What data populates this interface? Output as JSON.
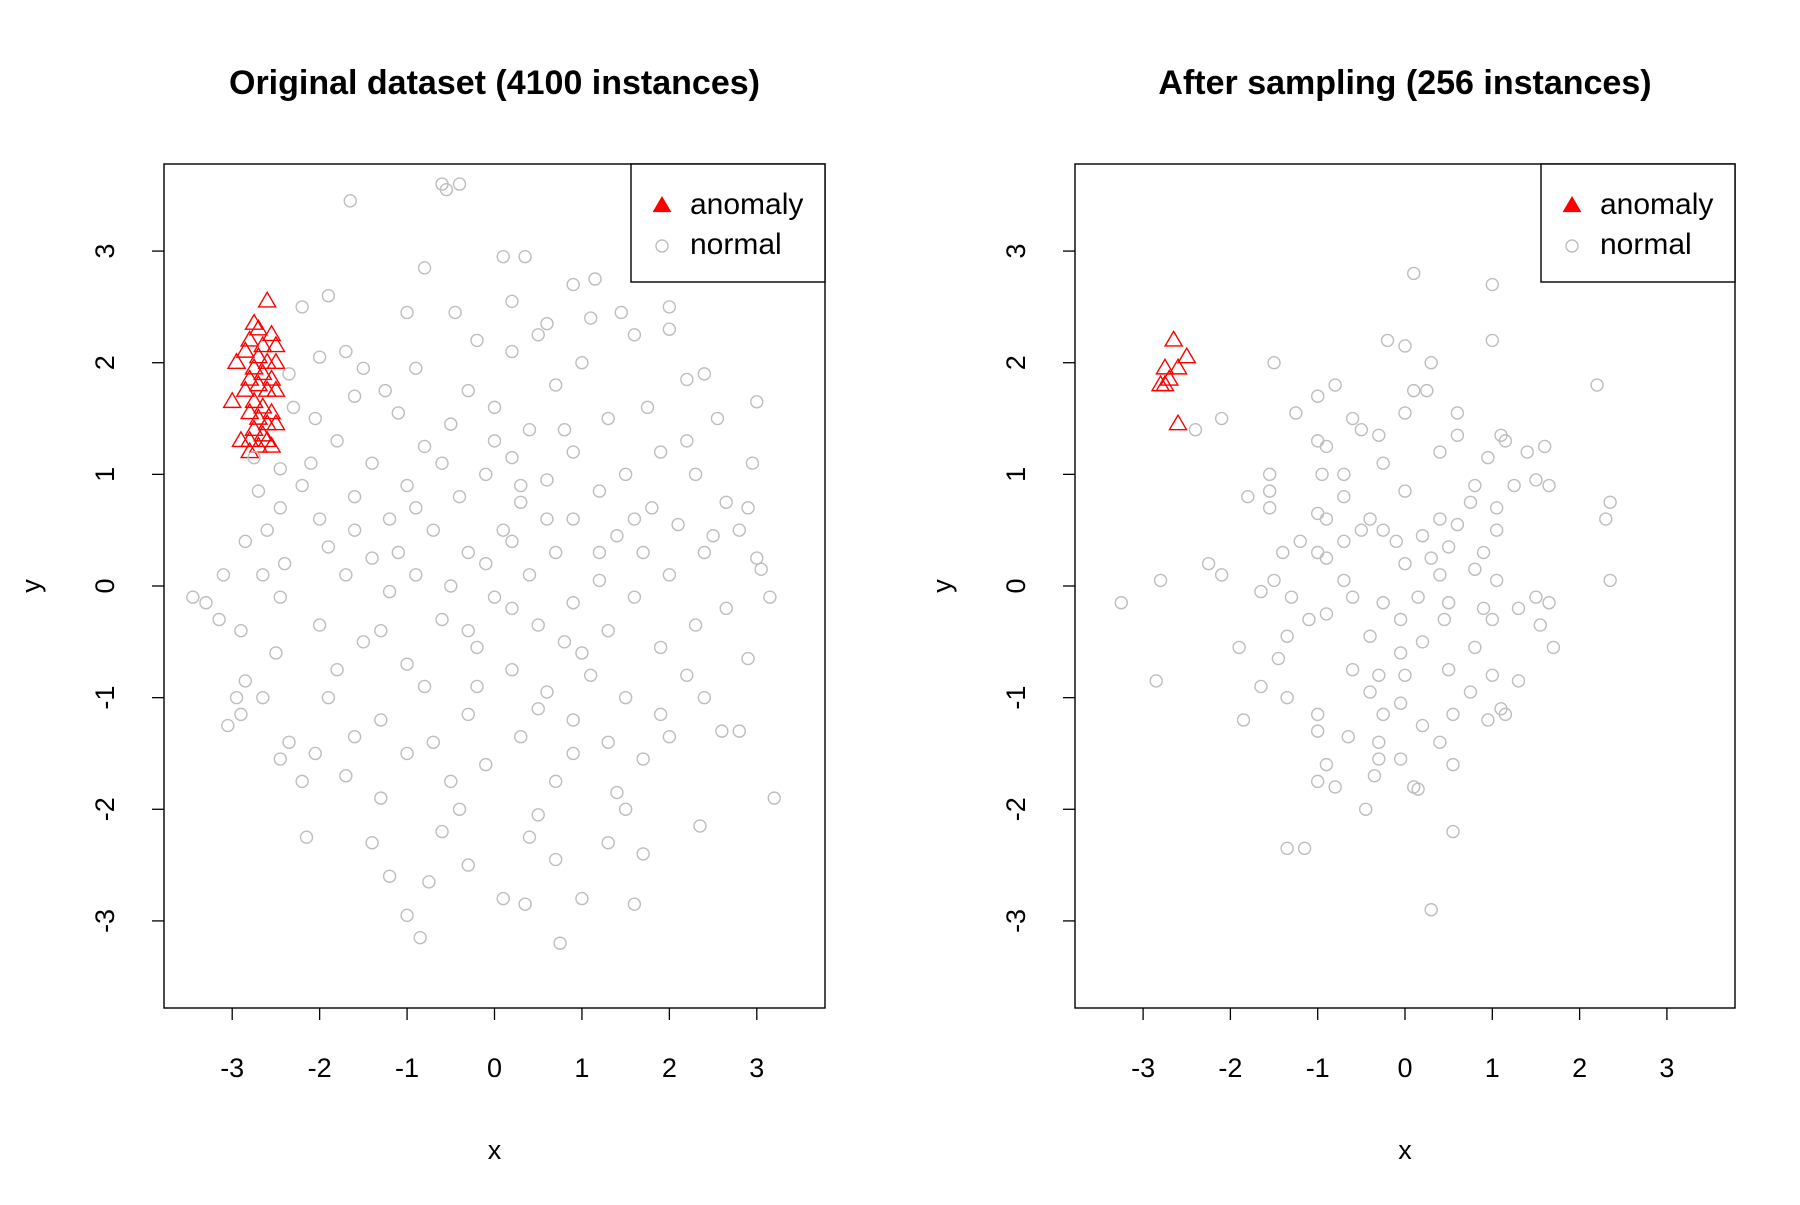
{
  "chart_data": [
    {
      "type": "scatter",
      "title": "Original dataset (4100 instances)",
      "xlabel": "x",
      "ylabel": "y",
      "xlim": [
        -3.78,
        3.78
      ],
      "ylim": [
        -3.78,
        3.78
      ],
      "xticks": [
        -3,
        -2,
        -1,
        0,
        1,
        2,
        3
      ],
      "yticks": [
        -3,
        -2,
        -1,
        0,
        1,
        2,
        3
      ],
      "legend": "topright",
      "series": [
        {
          "name": "anomaly",
          "color": "#ff0000",
          "marker": "triangle",
          "x": [
            -2.6,
            -2.75,
            -2.7,
            -2.55,
            -2.8,
            -2.65,
            -2.5,
            -2.85,
            -2.7,
            -2.6,
            -2.5,
            -2.95,
            -2.75,
            -2.65,
            -2.55,
            -2.8,
            -2.7,
            -2.6,
            -2.5,
            -2.85,
            -3.0,
            -2.75,
            -2.65,
            -2.55,
            -2.8,
            -2.7,
            -2.6,
            -2.5,
            -2.75,
            -2.65,
            -2.9,
            -2.8,
            -2.7,
            -2.6,
            -2.8,
            -2.55
          ],
          "y": [
            2.55,
            2.35,
            2.3,
            2.25,
            2.2,
            2.15,
            2.15,
            2.1,
            2.05,
            2.0,
            2.0,
            2.0,
            1.95,
            1.9,
            1.85,
            1.85,
            1.8,
            1.75,
            1.75,
            1.75,
            1.65,
            1.65,
            1.6,
            1.55,
            1.55,
            1.5,
            1.45,
            1.45,
            1.4,
            1.35,
            1.3,
            1.3,
            1.25,
            1.3,
            1.2,
            1.25
          ]
        },
        {
          "name": "normal",
          "color": "#bebebe",
          "marker": "circle",
          "x": [
            -0.4,
            -0.6,
            -0.55,
            -1.65,
            0.1,
            0.35,
            -0.8,
            1.15,
            0.9,
            0.2,
            -1.9,
            -2.2,
            -0.45,
            1.1,
            1.45,
            2.0,
            -1.0,
            0.6,
            1.6,
            2.0,
            -1.7,
            -2.0,
            -0.2,
            0.5,
            -1.5,
            2.4,
            2.2,
            1.0,
            -0.9,
            0.2,
            -2.35,
            -1.6,
            -1.25,
            2.55,
            3.0,
            1.75,
            -0.3,
            0.7,
            -2.05,
            -2.3,
            -1.1,
            0.0,
            1.3,
            -0.5,
            0.4,
            2.2,
            -1.8,
            -2.75,
            -2.45,
            2.95,
            1.9,
            -0.8,
            0.9,
            -2.1,
            -1.4,
            0.2,
            1.5,
            2.3,
            -0.1,
            -2.7,
            -2.2,
            -1.0,
            0.6,
            1.2,
            2.65,
            2.9,
            -2.45,
            -1.6,
            -0.4,
            0.3,
            1.8,
            -2.0,
            -1.2,
            0.9,
            2.1,
            -2.6,
            -0.7,
            0.1,
            1.4,
            2.5,
            2.8,
            -2.85,
            -1.9,
            -0.3,
            0.7,
            1.7,
            2.4,
            -1.4,
            -2.4,
            3.0,
            -3.1,
            -2.65,
            -1.7,
            -0.9,
            0.4,
            1.2,
            2.0,
            3.05,
            -3.45,
            -3.3,
            -2.45,
            -1.2,
            0.0,
            0.9,
            1.6,
            2.65,
            3.15,
            -3.15,
            -2.9,
            -2.0,
            -0.6,
            0.5,
            1.3,
            2.3,
            -1.5,
            -0.2,
            0.8,
            1.9,
            -2.5,
            2.9,
            -2.85,
            -1.8,
            -1.0,
            0.2,
            1.1,
            2.2,
            -2.65,
            -2.95,
            -1.9,
            0.6,
            1.5,
            2.4,
            -3.05,
            -2.9,
            -1.3,
            -0.3,
            0.9,
            1.9,
            2.6,
            2.8,
            -2.35,
            -1.6,
            -0.7,
            0.3,
            1.3,
            2.0,
            -2.45,
            -2.05,
            -0.1,
            1.7,
            -2.2,
            -1.7,
            -0.5,
            0.7,
            1.4,
            3.2,
            -1.3,
            -0.4,
            0.5,
            1.5,
            -2.15,
            -1.4,
            -0.6,
            0.4,
            1.3,
            2.35,
            -1.2,
            -0.3,
            0.7,
            1.7,
            -0.75,
            0.1,
            1.0,
            1.6,
            -1.0,
            0.35,
            -0.85,
            0.75,
            -0.1,
            0.2,
            -0.5,
            0.6,
            -0.8,
            0.3,
            -1.1,
            1.0,
            -0.2,
            0.8,
            -1.3,
            0.0,
            1.2,
            -0.6,
            0.5,
            -1.0,
            1.6,
            -1.6,
            0.2,
            -0.3,
            0.9,
            -0.9
          ],
          "y": [
            3.6,
            3.6,
            3.55,
            3.45,
            2.95,
            2.95,
            2.85,
            2.75,
            2.7,
            2.55,
            2.6,
            2.5,
            2.45,
            2.4,
            2.45,
            2.5,
            2.45,
            2.35,
            2.25,
            2.3,
            2.1,
            2.05,
            2.2,
            2.25,
            1.95,
            1.9,
            1.85,
            2.0,
            1.95,
            2.1,
            1.9,
            1.7,
            1.75,
            1.5,
            1.65,
            1.6,
            1.75,
            1.8,
            1.5,
            1.6,
            1.55,
            1.6,
            1.5,
            1.45,
            1.4,
            1.3,
            1.3,
            1.15,
            1.05,
            1.1,
            1.2,
            1.25,
            1.2,
            1.1,
            1.1,
            1.15,
            1.0,
            1.0,
            1.0,
            0.85,
            0.9,
            0.9,
            0.95,
            0.85,
            0.75,
            0.7,
            0.7,
            0.8,
            0.8,
            0.75,
            0.7,
            0.6,
            0.6,
            0.6,
            0.55,
            0.5,
            0.5,
            0.5,
            0.45,
            0.45,
            0.5,
            0.4,
            0.35,
            0.3,
            0.3,
            0.3,
            0.3,
            0.25,
            0.2,
            0.25,
            0.1,
            0.1,
            0.1,
            0.1,
            0.1,
            0.05,
            0.1,
            0.15,
            -0.1,
            -0.15,
            -0.1,
            -0.05,
            -0.1,
            -0.15,
            -0.1,
            -0.2,
            -0.1,
            -0.3,
            -0.4,
            -0.35,
            -0.3,
            -0.35,
            -0.4,
            -0.35,
            -0.5,
            -0.55,
            -0.5,
            -0.55,
            -0.6,
            -0.65,
            -0.85,
            -0.75,
            -0.7,
            -0.75,
            -0.8,
            -0.8,
            -1.0,
            -1.0,
            -1.0,
            -0.95,
            -1.0,
            -1.0,
            -1.25,
            -1.15,
            -1.2,
            -1.15,
            -1.2,
            -1.15,
            -1.3,
            -1.3,
            -1.4,
            -1.35,
            -1.4,
            -1.35,
            -1.4,
            -1.35,
            -1.55,
            -1.5,
            -1.6,
            -1.55,
            -1.75,
            -1.7,
            -1.75,
            -1.75,
            -1.85,
            -1.9,
            -1.9,
            -2.0,
            -2.05,
            -2.0,
            -2.25,
            -2.3,
            -2.2,
            -2.25,
            -2.3,
            -2.15,
            -2.6,
            -2.5,
            -2.45,
            -2.4,
            -2.65,
            -2.8,
            -2.8,
            -2.85,
            -2.95,
            -2.85,
            -3.15,
            -3.2,
            0.2,
            -0.2,
            0.0,
            0.6,
            -0.9,
            0.9,
            0.3,
            -0.6,
            -0.9,
            1.4,
            -0.4,
            1.3,
            0.3,
            1.1,
            -1.1,
            -1.5,
            0.6,
            0.5,
            0.4,
            -0.4,
            -1.5,
            0.7
          ]
        }
      ]
    },
    {
      "type": "scatter",
      "title": "After sampling (256 instances)",
      "xlabel": "x",
      "ylabel": "y",
      "xlim": [
        -3.78,
        3.78
      ],
      "ylim": [
        -3.78,
        3.78
      ],
      "xticks": [
        -3,
        -2,
        -1,
        0,
        1,
        2,
        3
      ],
      "yticks": [
        -3,
        -2,
        -1,
        0,
        1,
        2,
        3
      ],
      "legend": "topright",
      "series": [
        {
          "name": "anomaly",
          "color": "#ff0000",
          "marker": "triangle",
          "x": [
            -2.65,
            -2.5,
            -2.6,
            -2.75,
            -2.7,
            -2.8,
            -2.6,
            -2.75
          ],
          "y": [
            2.2,
            2.05,
            1.95,
            1.95,
            1.85,
            1.8,
            1.45,
            1.8
          ]
        },
        {
          "name": "normal",
          "color": "#bebebe",
          "marker": "circle",
          "x": [
            0.1,
            1.0,
            -0.2,
            0.0,
            1.0,
            0.3,
            -1.5,
            2.2,
            -2.1,
            -2.4,
            0.1,
            0.25,
            -0.8,
            -1.0,
            0.6,
            0.0,
            -0.6,
            -1.25,
            -0.5,
            -0.3,
            0.6,
            1.1,
            1.15,
            -1.0,
            -0.9,
            0.4,
            0.95,
            1.4,
            1.6,
            -0.25,
            -1.55,
            -0.95,
            -0.7,
            -1.55,
            0.8,
            1.5,
            1.65,
            1.25,
            -0.7,
            0.0,
            -1.8,
            -1.55,
            -1.0,
            -0.9,
            2.35,
            2.3,
            0.75,
            1.05,
            0.4,
            0.6,
            -0.4,
            -0.25,
            -0.5,
            0.2,
            -0.1,
            -1.2,
            -0.7,
            0.5,
            1.05,
            -1.0,
            0.9,
            -1.4,
            -0.9,
            0.3,
            0.0,
            -2.25,
            -2.1,
            -1.5,
            -0.7,
            0.4,
            0.8,
            1.05,
            2.35,
            -2.8,
            -3.25,
            -1.65,
            -1.3,
            -0.6,
            -0.25,
            0.15,
            0.5,
            0.9,
            1.3,
            1.5,
            1.65,
            -0.9,
            -1.1,
            -0.05,
            0.45,
            1.0,
            1.55,
            -1.35,
            -0.4,
            0.2,
            -1.9,
            0.8,
            -0.05,
            1.7,
            -1.45,
            -0.6,
            0.5,
            -0.3,
            0.0,
            1.0,
            1.3,
            -2.85,
            -1.65,
            -0.4,
            0.75,
            -1.35,
            -0.05,
            1.1,
            -1.0,
            -0.25,
            0.55,
            1.15,
            0.95,
            -1.85,
            -1.0,
            0.2,
            -0.65,
            -0.3,
            0.4,
            -0.3,
            -0.05,
            -0.9,
            0.55,
            -0.35,
            -1.0,
            -0.8,
            0.1,
            0.15,
            -0.45,
            0.55,
            -1.35,
            -1.15,
            0.3
          ],
          "y": [
            2.8,
            2.7,
            2.2,
            2.15,
            2.2,
            2.0,
            2.0,
            1.8,
            1.5,
            1.4,
            1.75,
            1.75,
            1.8,
            1.7,
            1.55,
            1.55,
            1.5,
            1.55,
            1.4,
            1.35,
            1.35,
            1.35,
            1.3,
            1.3,
            1.25,
            1.2,
            1.15,
            1.2,
            1.25,
            1.1,
            1.0,
            1.0,
            1.0,
            0.85,
            0.9,
            0.95,
            0.9,
            0.9,
            0.8,
            0.85,
            0.8,
            0.7,
            0.65,
            0.6,
            0.75,
            0.6,
            0.75,
            0.7,
            0.6,
            0.55,
            0.6,
            0.5,
            0.5,
            0.45,
            0.4,
            0.4,
            0.4,
            0.35,
            0.5,
            0.3,
            0.3,
            0.3,
            0.25,
            0.25,
            0.2,
            0.2,
            0.1,
            0.05,
            0.05,
            0.1,
            0.15,
            0.05,
            0.05,
            0.05,
            -0.15,
            -0.05,
            -0.1,
            -0.1,
            -0.15,
            -0.1,
            -0.15,
            -0.2,
            -0.2,
            -0.1,
            -0.15,
            -0.25,
            -0.3,
            -0.3,
            -0.3,
            -0.3,
            -0.35,
            -0.45,
            -0.45,
            -0.5,
            -0.55,
            -0.55,
            -0.6,
            -0.55,
            -0.65,
            -0.75,
            -0.75,
            -0.8,
            -0.8,
            -0.8,
            -0.85,
            -0.85,
            -0.9,
            -0.95,
            -0.95,
            -1.0,
            -1.05,
            -1.1,
            -1.15,
            -1.15,
            -1.15,
            -1.15,
            -1.2,
            -1.2,
            -1.3,
            -1.25,
            -1.35,
            -1.4,
            -1.4,
            -1.55,
            -1.55,
            -1.6,
            -1.6,
            -1.7,
            -1.75,
            -1.8,
            -1.8,
            -1.82,
            -2.0,
            -2.2,
            -2.35,
            -2.35,
            -2.9
          ]
        }
      ]
    }
  ]
}
